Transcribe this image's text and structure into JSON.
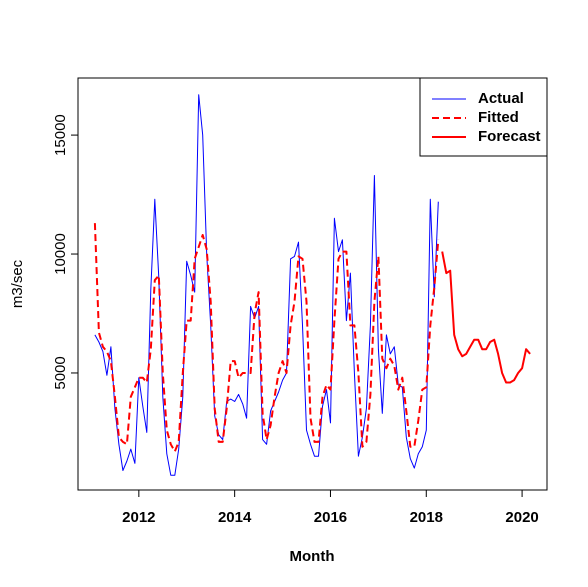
{
  "chart_data": {
    "type": "line",
    "x_label": "Month",
    "y_label": "m3/sec",
    "xlim": [
      2010.73,
      2020.52
    ],
    "ylim": [
      80,
      17400
    ],
    "xticks": [
      2012,
      2014,
      2016,
      2018,
      2020
    ],
    "yticks": [
      5000,
      10000,
      15000
    ],
    "legend": "top-right",
    "series": [
      {
        "name": "Actual",
        "color": "#0000ff",
        "dashed": false,
        "width": 1,
        "x": [
          2011.083,
          2011.167,
          2011.25,
          2011.333,
          2011.417,
          2011.5,
          2011.583,
          2011.667,
          2011.75,
          2011.833,
          2011.917,
          2012.0,
          2012.083,
          2012.167,
          2012.25,
          2012.333,
          2012.417,
          2012.5,
          2012.583,
          2012.667,
          2012.75,
          2012.833,
          2012.917,
          2013.0,
          2013.083,
          2013.167,
          2013.25,
          2013.333,
          2013.417,
          2013.5,
          2013.583,
          2013.667,
          2013.75,
          2013.833,
          2013.917,
          2014.0,
          2014.083,
          2014.167,
          2014.25,
          2014.333,
          2014.417,
          2014.5,
          2014.583,
          2014.667,
          2014.75,
          2014.833,
          2014.917,
          2015.0,
          2015.083,
          2015.167,
          2015.25,
          2015.333,
          2015.417,
          2015.5,
          2015.583,
          2015.667,
          2015.75,
          2015.833,
          2015.917,
          2016.0,
          2016.083,
          2016.167,
          2016.25,
          2016.333,
          2016.417,
          2016.5,
          2016.583,
          2016.667,
          2016.75,
          2016.833,
          2016.917,
          2017.0,
          2017.083,
          2017.167,
          2017.25,
          2017.333,
          2017.417,
          2017.5,
          2017.583,
          2017.667,
          2017.75,
          2017.833,
          2017.917,
          2018.0,
          2018.083,
          2018.167,
          2018.25
        ],
        "values": [
          6600,
          6300,
          5900,
          4900,
          6100,
          3500,
          2000,
          900,
          1300,
          1800,
          1200,
          4800,
          3600,
          2500,
          8500,
          12300,
          9000,
          4000,
          1600,
          700,
          700,
          1800,
          4000,
          9700,
          9100,
          8400,
          16700,
          15000,
          10000,
          7000,
          3200,
          2400,
          2200,
          3800,
          3900,
          3800,
          4100,
          3700,
          3100,
          7800,
          7300,
          7800,
          2200,
          2000,
          3400,
          3800,
          4200,
          4700,
          5000,
          9800,
          9900,
          10500,
          7000,
          2600,
          2000,
          1500,
          1500,
          3600,
          4300,
          2900,
          11500,
          10100,
          10600,
          7200,
          9200,
          5000,
          1500,
          2300,
          3500,
          7000,
          13300,
          6000,
          3300,
          6600,
          5800,
          6100,
          4500,
          4400,
          2300,
          1400,
          1000,
          1600,
          1900,
          2600,
          12300,
          8200,
          12200
        ]
      },
      {
        "name": "Fitted",
        "color": "#ff0000",
        "dashed": true,
        "width": 2,
        "x": [
          2011.083,
          2011.167,
          2011.25,
          2011.333,
          2011.417,
          2011.5,
          2011.583,
          2011.667,
          2011.75,
          2011.833,
          2011.917,
          2012.0,
          2012.083,
          2012.167,
          2012.25,
          2012.333,
          2012.417,
          2012.5,
          2012.583,
          2012.667,
          2012.75,
          2012.833,
          2012.917,
          2013.0,
          2013.083,
          2013.167,
          2013.25,
          2013.333,
          2013.417,
          2013.5,
          2013.583,
          2013.667,
          2013.75,
          2013.833,
          2013.917,
          2014.0,
          2014.083,
          2014.167,
          2014.25,
          2014.333,
          2014.417,
          2014.5,
          2014.583,
          2014.667,
          2014.75,
          2014.833,
          2014.917,
          2015.0,
          2015.083,
          2015.167,
          2015.25,
          2015.333,
          2015.417,
          2015.5,
          2015.583,
          2015.667,
          2015.75,
          2015.833,
          2015.917,
          2016.0,
          2016.083,
          2016.167,
          2016.25,
          2016.333,
          2016.417,
          2016.5,
          2016.583,
          2016.667,
          2016.75,
          2016.833,
          2016.917,
          2017.0,
          2017.083,
          2017.167,
          2017.25,
          2017.333,
          2017.417,
          2017.5,
          2017.583,
          2017.667,
          2017.75,
          2017.833,
          2017.917,
          2018.0,
          2018.083,
          2018.167,
          2018.25
        ],
        "values": [
          11300,
          6700,
          6100,
          5900,
          5500,
          4000,
          2300,
          2100,
          2000,
          4000,
          4400,
          4800,
          4800,
          4600,
          6000,
          8900,
          9100,
          5000,
          2600,
          2000,
          1700,
          2100,
          5000,
          7200,
          7200,
          9800,
          10300,
          10800,
          10200,
          8000,
          3500,
          2100,
          2100,
          3500,
          5500,
          5500,
          4800,
          5000,
          5000,
          5000,
          7500,
          8400,
          3300,
          2200,
          2800,
          4000,
          5000,
          5500,
          5000,
          7000,
          8000,
          9900,
          9800,
          8000,
          3100,
          2100,
          2100,
          4000,
          4500,
          4300,
          7200,
          9800,
          10100,
          10100,
          7000,
          7000,
          5000,
          1900,
          2100,
          4100,
          8000,
          9900,
          5600,
          5200,
          5600,
          5300,
          4300,
          4800,
          3400,
          1900,
          1900,
          3000,
          4300,
          4400,
          7000,
          8600,
          10600
        ]
      },
      {
        "name": "Forecast",
        "color": "#ff0000",
        "dashed": false,
        "width": 2,
        "x": [
          2018.333,
          2018.417,
          2018.5,
          2018.583,
          2018.667,
          2018.75,
          2018.833,
          2018.917,
          2019.0,
          2019.083,
          2019.167,
          2019.25,
          2019.333,
          2019.417,
          2019.5,
          2019.583,
          2019.667,
          2019.75,
          2019.833,
          2019.917,
          2020.0,
          2020.083,
          2020.167
        ],
        "values": [
          10100,
          9200,
          9300,
          6600,
          6000,
          5700,
          5800,
          6100,
          6400,
          6400,
          6000,
          6000,
          6300,
          6400,
          5800,
          5000,
          4600,
          4600,
          4700,
          5000,
          5200,
          6000,
          5800
        ]
      }
    ]
  }
}
